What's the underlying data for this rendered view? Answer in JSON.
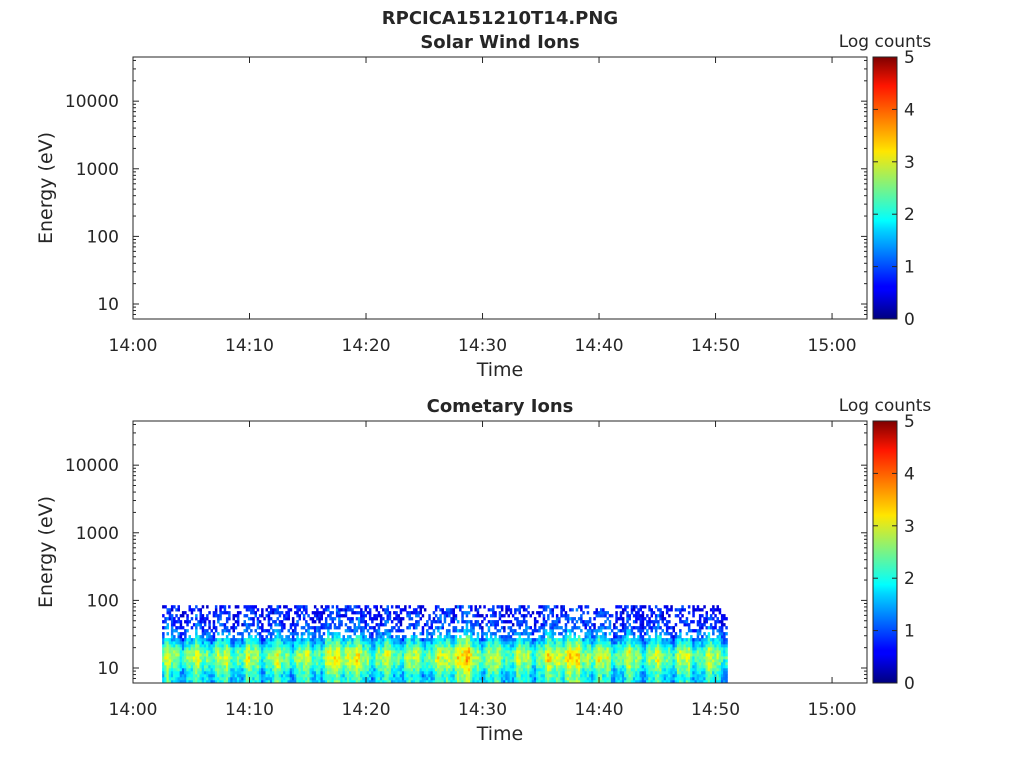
{
  "figure": {
    "title": "RPCICA151210T14.PNG"
  },
  "chart_data": [
    {
      "type": "heatmap",
      "title": "Solar Wind Ions",
      "xlabel": "Time",
      "ylabel": "Energy (eV)",
      "y_scale": "log",
      "ylim": [
        6,
        45000
      ],
      "xlim": [
        "14:00",
        "15:03"
      ],
      "x_ticks": [
        "14:00",
        "14:10",
        "14:20",
        "14:30",
        "14:40",
        "14:50",
        "15:00"
      ],
      "y_ticks": [
        "10",
        "100",
        "1000",
        "10000"
      ],
      "y_tick_values": [
        10,
        100,
        1000,
        10000
      ],
      "colorbar": {
        "label": "Log counts",
        "range": [
          0,
          5
        ],
        "ticks": [
          "0",
          "1",
          "2",
          "3",
          "4",
          "5"
        ],
        "colormap": "jet"
      },
      "data_coverage": null
    },
    {
      "type": "heatmap",
      "title": "Cometary Ions",
      "xlabel": "Time",
      "ylabel": "Energy (eV)",
      "y_scale": "log",
      "ylim": [
        6,
        45000
      ],
      "xlim": [
        "14:00",
        "15:03"
      ],
      "x_ticks": [
        "14:00",
        "14:10",
        "14:20",
        "14:30",
        "14:40",
        "14:50",
        "15:00"
      ],
      "y_ticks": [
        "10",
        "100",
        "1000",
        "10000"
      ],
      "y_tick_values": [
        10,
        100,
        1000,
        10000
      ],
      "colorbar": {
        "label": "Log counts",
        "range": [
          0,
          5
        ],
        "ticks": [
          "0",
          "1",
          "2",
          "3",
          "4",
          "5"
        ],
        "colormap": "jet"
      },
      "data_coverage": {
        "time_start": "14:02.5",
        "time_end": "14:51",
        "energy_min": 6,
        "energy_max": 85
      },
      "profile": [
        {
          "e": 8,
          "v": 1.8
        },
        {
          "e": 11,
          "v": 2.3
        },
        {
          "e": 14,
          "v": 2.6
        },
        {
          "e": 18,
          "v": 2.4
        },
        {
          "e": 22,
          "v": 1.9
        },
        {
          "e": 28,
          "v": 1.4
        },
        {
          "e": 40,
          "v": 0.9
        },
        {
          "e": 60,
          "v": 0.7
        },
        {
          "e": 80,
          "v": 0.6
        }
      ],
      "enhancements": [
        {
          "time": "14:18",
          "v": 3.1
        },
        {
          "time": "14:28",
          "v": 3.3
        },
        {
          "time": "14:37",
          "v": 3.2
        },
        {
          "time": "14:39",
          "v": 2.9
        }
      ]
    }
  ]
}
